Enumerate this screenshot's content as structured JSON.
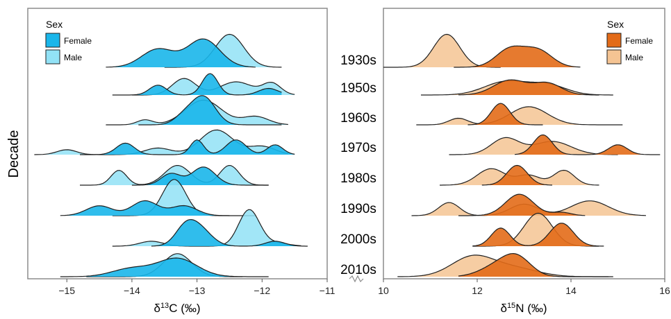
{
  "y_axis_title": "Decade",
  "decades": [
    "1930s",
    "1950s",
    "1960s",
    "1970s",
    "1980s",
    "1990s",
    "2000s",
    "2010s"
  ],
  "chart_data": [
    {
      "type": "ridgeline",
      "xlabel": "δ13C (‰)",
      "xlim": [
        -15.6,
        -11
      ],
      "xticks": [
        -15,
        -14,
        -13,
        -12,
        -11
      ],
      "legend": {
        "title": "Sex",
        "placement": "top-left",
        "entries": [
          "Female",
          "Male"
        ]
      },
      "colors": {
        "Female": "#1ab6ea",
        "Male": "#92e2f6"
      },
      "series": [
        {
          "decade": "1930s",
          "Female": {
            "range": [
              -14.4,
              -12.1
            ],
            "peaks": [
              [
                -13.6,
                0.25,
                0.55
              ],
              [
                -12.9,
                0.25,
                0.85
              ]
            ]
          },
          "Male": {
            "range": [
              -13.5,
              -11.7
            ],
            "peaks": [
              [
                -12.5,
                0.22,
                1.0
              ]
            ]
          }
        },
        {
          "decade": "1950s",
          "Female": {
            "range": [
              -14.3,
              -11.7
            ],
            "peaks": [
              [
                -13.6,
                0.13,
                0.3
              ],
              [
                -12.8,
                0.12,
                0.65
              ],
              [
                -11.9,
                0.15,
                0.2
              ]
            ]
          },
          "Male": {
            "range": [
              -14.0,
              -11.5
            ],
            "peaks": [
              [
                -13.2,
                0.18,
                0.5
              ],
              [
                -12.4,
                0.25,
                0.4
              ],
              [
                -11.85,
                0.14,
                0.35
              ]
            ]
          }
        },
        {
          "decade": "1960s",
          "Female": {
            "range": [
              -13.9,
              -11.7
            ],
            "peaks": [
              [
                -13.2,
                0.15,
                0.25
              ],
              [
                -12.9,
                0.18,
                0.85
              ]
            ]
          },
          "Male": {
            "range": [
              -14.4,
              -11.6
            ],
            "peaks": [
              [
                -13.8,
                0.12,
                0.15
              ],
              [
                -12.9,
                0.28,
                0.75
              ],
              [
                -12.1,
                0.2,
                0.25
              ]
            ]
          }
        },
        {
          "decade": "1970s",
          "Female": {
            "range": [
              -14.8,
              -11.5
            ],
            "peaks": [
              [
                -14.1,
                0.14,
                0.35
              ],
              [
                -13.0,
                0.1,
                0.45
              ],
              [
                -12.4,
                0.15,
                0.45
              ],
              [
                -11.8,
                0.12,
                0.3
              ]
            ]
          },
          "Male": {
            "range": [
              -15.5,
              -11.6
            ],
            "peaks": [
              [
                -15.0,
                0.15,
                0.15
              ],
              [
                -13.6,
                0.2,
                0.2
              ],
              [
                -12.7,
                0.25,
                0.75
              ],
              [
                -12.0,
                0.2,
                0.25
              ]
            ]
          }
        },
        {
          "decade": "1980s",
          "Female": {
            "range": [
              -14.0,
              -11.9
            ],
            "peaks": [
              [
                -13.4,
                0.15,
                0.35
              ],
              [
                -12.9,
                0.18,
                0.55
              ]
            ]
          },
          "Male": {
            "range": [
              -14.8,
              -11.9
            ],
            "peaks": [
              [
                -14.2,
                0.12,
                0.45
              ],
              [
                -13.3,
                0.2,
                0.6
              ],
              [
                -12.5,
                0.15,
                0.6
              ]
            ]
          }
        },
        {
          "decade": "1990s",
          "Female": {
            "range": [
              -15.1,
              -12.1
            ],
            "peaks": [
              [
                -14.5,
                0.2,
                0.3
              ],
              [
                -13.8,
                0.2,
                0.45
              ],
              [
                -13.2,
                0.2,
                0.3
              ]
            ]
          },
          "Male": {
            "range": [
              -14.3,
              -12.5
            ],
            "peaks": [
              [
                -13.35,
                0.18,
                1.1
              ]
            ]
          }
        },
        {
          "decade": "2000s",
          "Female": {
            "range": [
              -13.7,
              -11.3
            ],
            "peaks": [
              [
                -13.2,
                0.15,
                0.35
              ],
              [
                -13.0,
                0.2,
                0.6
              ],
              [
                -11.8,
                0.15,
                0.15
              ]
            ]
          },
          "Male": {
            "range": [
              -14.3,
              -11.4
            ],
            "peaks": [
              [
                -13.7,
                0.18,
                0.15
              ],
              [
                -12.2,
                0.16,
                1.1
              ],
              [
                -11.8,
                0.2,
                0.1
              ]
            ]
          }
        },
        {
          "decade": "2010s",
          "Female": {
            "range": [
              -15.1,
              -11.9
            ],
            "peaks": [
              [
                -14.0,
                0.3,
                0.25
              ],
              [
                -13.3,
                0.3,
                0.55
              ]
            ]
          },
          "Male": {
            "range": [
              -14.7,
              -12.3
            ],
            "peaks": [
              [
                -13.3,
                0.22,
                0.7
              ]
            ]
          }
        }
      ]
    },
    {
      "type": "ridgeline",
      "xlabel": "δ15N (‰)",
      "xlim": [
        10,
        16
      ],
      "xticks": [
        10,
        12,
        14,
        16
      ],
      "legend": {
        "title": "Sex",
        "placement": "top-right",
        "entries": [
          "Female",
          "Male"
        ]
      },
      "colors": {
        "Female": "#e36b18",
        "Male": "#f5c493"
      },
      "series": [
        {
          "decade": "1930s",
          "Female": {
            "range": [
              11.5,
              14.2
            ],
            "peaks": [
              [
                12.7,
                0.3,
                0.55
              ],
              [
                13.3,
                0.3,
                0.5
              ]
            ]
          },
          "Male": {
            "range": [
              10.0,
              12.5
            ],
            "peaks": [
              [
                11.35,
                0.28,
                1.0
              ]
            ]
          }
        },
        {
          "decade": "1950s",
          "Female": {
            "range": [
              11.6,
              14.6
            ],
            "peaks": [
              [
                12.7,
                0.35,
                0.45
              ],
              [
                13.5,
                0.3,
                0.35
              ]
            ]
          },
          "Male": {
            "range": [
              10.8,
              14.9
            ],
            "peaks": [
              [
                12.6,
                0.45,
                0.4
              ],
              [
                13.5,
                0.4,
                0.3
              ]
            ]
          }
        },
        {
          "decade": "1960s",
          "Female": {
            "range": [
              11.8,
              13.4
            ],
            "peaks": [
              [
                12.5,
                0.2,
                0.65
              ]
            ]
          },
          "Male": {
            "range": [
              10.7,
              15.1
            ],
            "peaks": [
              [
                11.6,
                0.2,
                0.2
              ],
              [
                13.1,
                0.4,
                0.55
              ]
            ]
          }
        },
        {
          "decade": "1970s",
          "Female": {
            "range": [
              12.8,
              15.9
            ],
            "peaks": [
              [
                13.4,
                0.2,
                0.6
              ],
              [
                15.0,
                0.2,
                0.3
              ]
            ]
          },
          "Male": {
            "range": [
              11.4,
              15.0
            ],
            "peaks": [
              [
                12.6,
                0.3,
                0.5
              ],
              [
                13.6,
                0.4,
                0.4
              ]
            ]
          }
        },
        {
          "decade": "1980s",
          "Female": {
            "range": [
              12.1,
              13.6
            ],
            "peaks": [
              [
                12.85,
                0.22,
                0.6
              ]
            ]
          },
          "Male": {
            "range": [
              11.2,
              14.6
            ],
            "peaks": [
              [
                12.3,
                0.3,
                0.5
              ],
              [
                13.1,
                0.25,
                0.3
              ],
              [
                13.85,
                0.22,
                0.45
              ]
            ]
          }
        },
        {
          "decade": "1990s",
          "Female": {
            "range": [
              11.6,
              14.3
            ],
            "peaks": [
              [
                12.9,
                0.3,
                0.65
              ],
              [
                13.8,
                0.2,
                0.1
              ]
            ]
          },
          "Male": {
            "range": [
              10.6,
              15.6
            ],
            "peaks": [
              [
                11.4,
                0.22,
                0.4
              ],
              [
                13.0,
                0.3,
                0.35
              ],
              [
                14.4,
                0.4,
                0.45
              ]
            ]
          }
        },
        {
          "decade": "2000s",
          "Female": {
            "range": [
              11.9,
              14.7
            ],
            "peaks": [
              [
                12.5,
                0.2,
                0.55
              ],
              [
                13.8,
                0.25,
                0.7
              ]
            ]
          },
          "Male": {
            "range": [
              11.9,
              14.6
            ],
            "peaks": [
              [
                13.3,
                0.3,
                1.0
              ]
            ]
          }
        },
        {
          "decade": "2010s",
          "Female": {
            "range": [
              11.6,
              14.8
            ],
            "peaks": [
              [
                12.4,
                0.35,
                0.3
              ],
              [
                12.85,
                0.3,
                0.55
              ]
            ]
          },
          "Male": {
            "range": [
              10.3,
              14.9
            ],
            "peaks": [
              [
                11.9,
                0.45,
                0.6
              ],
              [
                12.8,
                0.5,
                0.25
              ]
            ]
          }
        }
      ]
    }
  ]
}
